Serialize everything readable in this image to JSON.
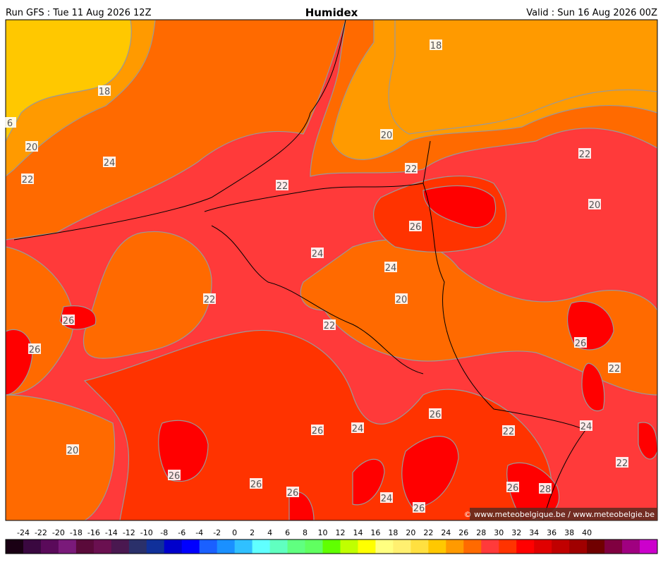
{
  "header": {
    "left": "Run GFS : Tue 11 Aug 2026 12Z",
    "title": "Humidex",
    "right": "Valid : Sun 16 Aug 2026 00Z"
  },
  "map": {
    "contour_labels": [
      18,
      18,
      6,
      20,
      24,
      22,
      20,
      22,
      22,
      22,
      20,
      26,
      24,
      24,
      22,
      20,
      26,
      22,
      26,
      26,
      22,
      26,
      24,
      26,
      24,
      22,
      20,
      26,
      22,
      26,
      26,
      26,
      28,
      24,
      26
    ],
    "credit": "© www.meteobelgique.be / www.meteobelgie.be"
  },
  "colorbar": {
    "labels": [
      -24,
      -22,
      -20,
      -18,
      -16,
      -14,
      -12,
      -10,
      -8,
      -6,
      -4,
      -2,
      0,
      2,
      4,
      6,
      8,
      10,
      12,
      14,
      16,
      18,
      20,
      22,
      24,
      26,
      28,
      30,
      32,
      34,
      36,
      38,
      40
    ],
    "colors": [
      "#1a0014",
      "#3a0840",
      "#5a0a5a",
      "#7a1a7a",
      "#5a0a3a",
      "#6a1050",
      "#4a1850",
      "#2a306a",
      "#10309a",
      "#0000cc",
      "#0000ff",
      "#1a60ff",
      "#1a90ff",
      "#30c0ff",
      "#60ffff",
      "#60ffc0",
      "#60ff80",
      "#60ff60",
      "#60ff00",
      "#c0ff00",
      "#ffff00",
      "#ffff80",
      "#fff070",
      "#ffe040",
      "#ffc800",
      "#ff9a00",
      "#ff6a00",
      "#ff3a3a",
      "#ff3300",
      "#ff0000",
      "#e00000",
      "#c00000",
      "#a00000",
      "#700000",
      "#800040",
      "#a00080",
      "#cc00cc"
    ]
  }
}
